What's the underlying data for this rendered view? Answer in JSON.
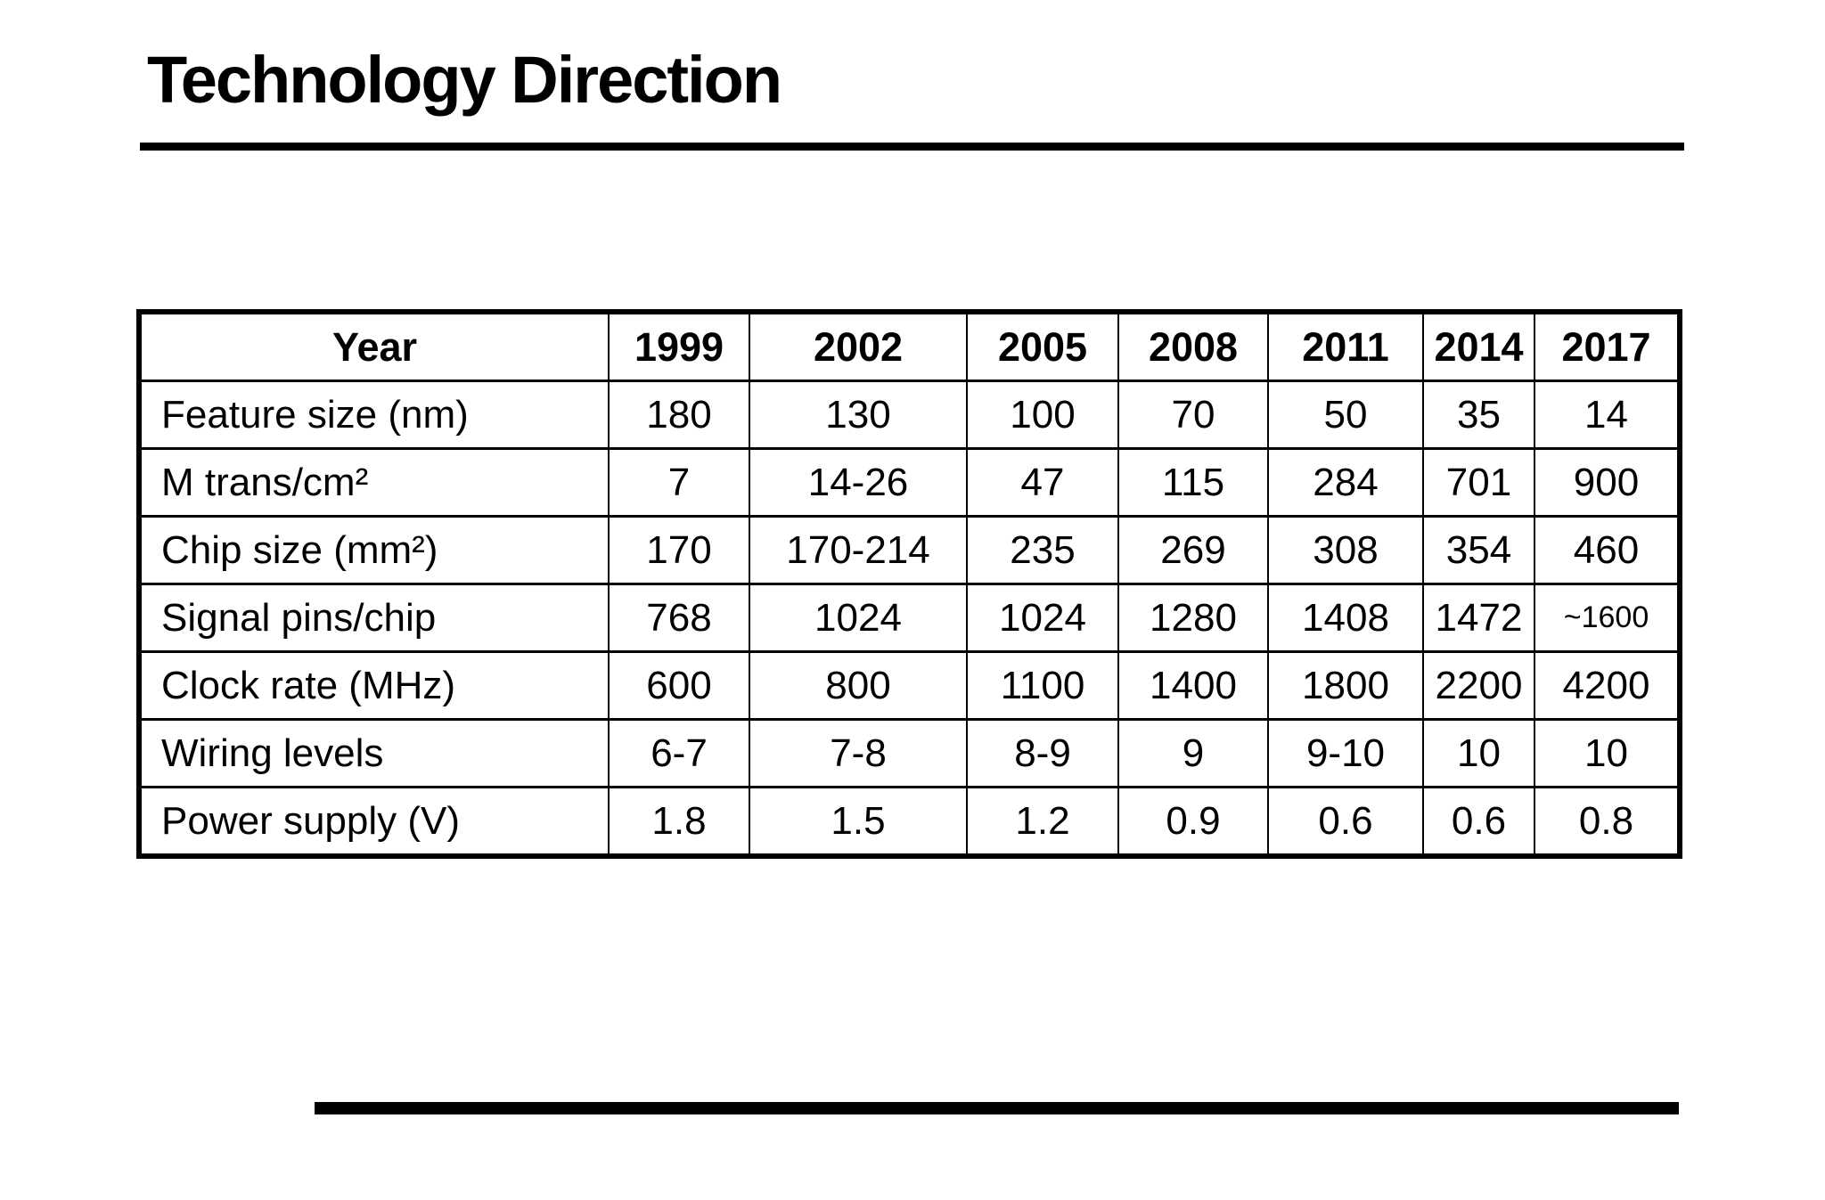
{
  "slide": {
    "title": "Technology Direction"
  },
  "table": {
    "columns": [
      "Year",
      "1999",
      "2002",
      "2005",
      "2008",
      "2011",
      "2014",
      "2017"
    ],
    "rows": [
      {
        "label": "Feature size (nm)",
        "values": [
          "180",
          "130",
          "100",
          "70",
          "50",
          "35",
          "14"
        ]
      },
      {
        "label": "M trans/cm²",
        "values": [
          "7",
          "14-26",
          "47",
          "115",
          "284",
          "701",
          "900"
        ]
      },
      {
        "label": "Chip size (mm²)",
        "values": [
          "170",
          "170-214",
          "235",
          "269",
          "308",
          "354",
          "460"
        ]
      },
      {
        "label": "Signal pins/chip",
        "values": [
          "768",
          "1024",
          "1024",
          "1280",
          "1408",
          "1472",
          "~1600"
        ]
      },
      {
        "label": "Clock rate (MHz)",
        "values": [
          "600",
          "800",
          "1100",
          "1400",
          "1800",
          "2200",
          "4200"
        ]
      },
      {
        "label": "Wiring levels",
        "values": [
          "6-7",
          "7-8",
          "8-9",
          "9",
          "9-10",
          "10",
          "10"
        ]
      },
      {
        "label": "Power supply (V)",
        "values": [
          "1.8",
          "1.5",
          "1.2",
          "0.9",
          "0.6",
          "0.6",
          "0.8"
        ]
      }
    ]
  },
  "colors": {
    "ink": "#000000",
    "background": "#ffffff"
  }
}
